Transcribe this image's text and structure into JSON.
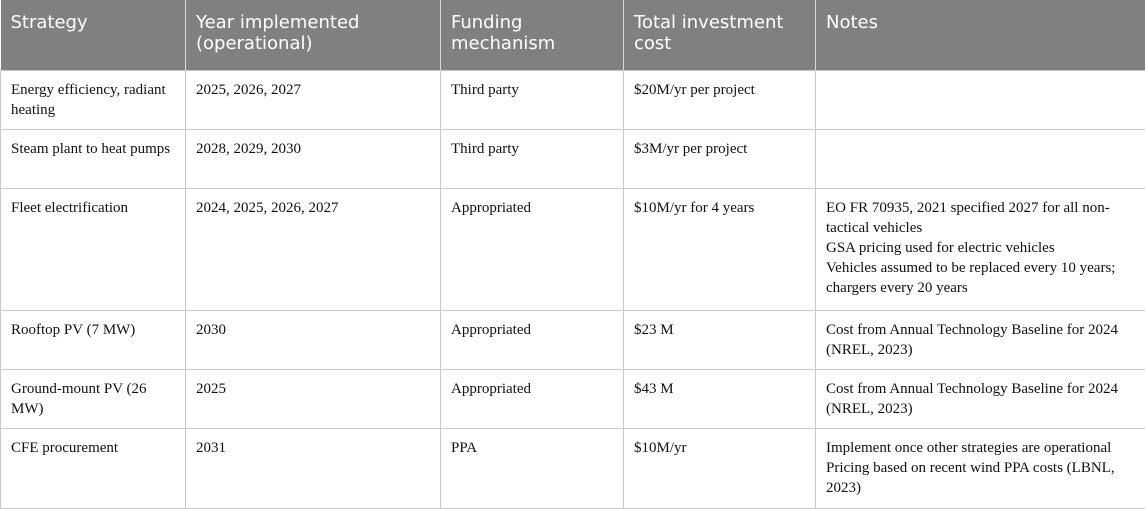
{
  "table": {
    "headers": [
      "Strategy",
      "Year implemented (operational)",
      "Funding mechanism",
      "Total investment cost",
      "Notes"
    ],
    "rows": [
      {
        "strategy": "Energy efficiency, radiant heating",
        "year": "2025, 2026, 2027",
        "funding": "Third party",
        "cost": "$20M/yr per project",
        "notes": []
      },
      {
        "strategy": "Steam plant to heat pumps",
        "year": "2028, 2029, 2030",
        "funding": "Third party",
        "cost": "$3M/yr per project",
        "notes": []
      },
      {
        "strategy": "Fleet electrification",
        "year": "2024, 2025, 2026, 2027",
        "funding": "Appropriated",
        "cost": "$10M/yr for 4 years",
        "notes": [
          "EO FR 70935, 2021 specified 2027 for all non-tactical vehicles",
          "GSA pricing used for electric vehicles",
          "Vehicles assumed to be replaced every 10 years; chargers every 20 years"
        ]
      },
      {
        "strategy": "Rooftop PV (7 MW)",
        "year": "2030",
        "funding": "Appropriated",
        "cost": "$23 M",
        "notes": [
          "Cost from Annual Technology Baseline for 2024 (NREL, 2023)"
        ]
      },
      {
        "strategy": "Ground-mount PV (26 MW)",
        "year": "2025",
        "funding": "Appropriated",
        "cost": "$43 M",
        "notes": [
          "Cost from Annual Technology Baseline for 2024 (NREL, 2023)"
        ]
      },
      {
        "strategy": "CFE procurement",
        "year": "2031",
        "funding": "PPA",
        "cost": "$10M/yr",
        "notes": [
          "Implement once other strategies are operational",
          "Pricing based on recent wind PPA costs (LBNL, 2023)"
        ]
      }
    ]
  }
}
